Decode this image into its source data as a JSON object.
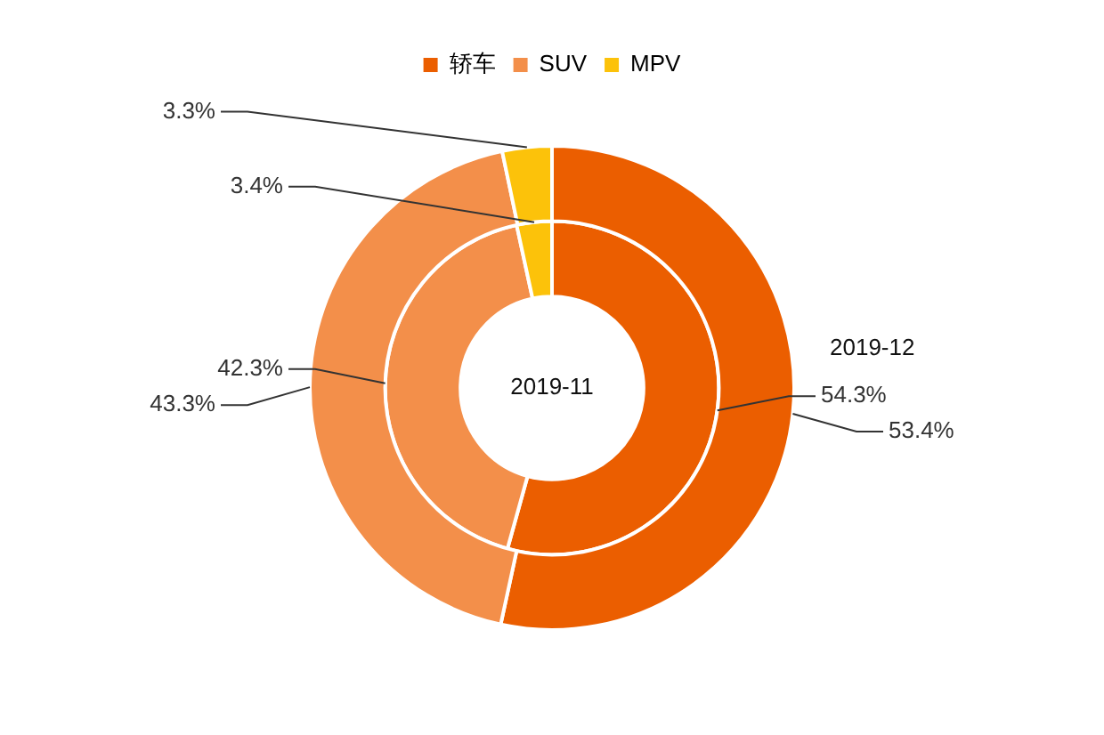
{
  "chart_data": {
    "type": "donut",
    "categories": [
      "轿车",
      "SUV",
      "MPV"
    ],
    "legend": "top",
    "series": [
      {
        "name": "2019-11",
        "colors": [
          "#eb5e00",
          "#f38f4a",
          "#fcc20a"
        ],
        "values": [
          54.3,
          42.3,
          3.4
        ],
        "value_labels": [
          "54.3%",
          "42.3%",
          "3.4%"
        ]
      },
      {
        "name": "2019-12",
        "colors": [
          "#eb5e00",
          "#f38f4a",
          "#fcc20a"
        ],
        "values": [
          53.4,
          43.3,
          3.3
        ],
        "value_labels": [
          "53.4%",
          "43.3%",
          "3.3%"
        ]
      }
    ]
  }
}
